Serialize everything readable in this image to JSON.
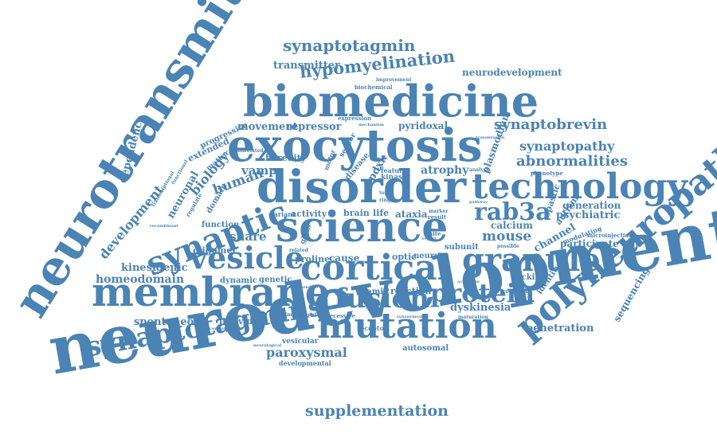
{
  "color": "#4a83b4",
  "words": {
    "neurodevelopmental": "neurodevelopmental",
    "neurotransmitter": "neurotransmitter",
    "biomedicine": "biomedicine",
    "exocytosis": "exocytosis",
    "disorder": "disorder",
    "science": "science",
    "membrane": "membrane",
    "mutation": "mutation",
    "polyneuropathy": "polyneuropathy",
    "technology": "technology",
    "cortical": "cortical",
    "granule": "granule",
    "synaptic": "synaptic",
    "vesicle": "vesicle",
    "synaptotagmins": "synaptotagmins",
    "fusion": "fusion",
    "protein": "protein",
    "rab3a": "rab3a",
    "synaptotagmin": "synaptotagmin",
    "hypomyelination": "hypomyelination",
    "transmitter": "transmitter",
    "neurodevelopment": "neurodevelopment",
    "synaptobrevin": "synaptobrevin",
    "synaptopathy": "synaptopathy",
    "abnormalities": "abnormalities",
    "movement": "movement",
    "repressor": "repressor",
    "pyridoxal": "pyridoxal",
    "development": "development",
    "dependence": "dependence",
    "kinesigenic": "kinesigenic",
    "homeodomain": "homeodomain",
    "spontaneous": "spontaneous",
    "individual": "individual",
    "paroxysmal": "paroxysmal",
    "supplementation": "supplementation",
    "penetration": "penetration",
    "dyskinesia": "dyskinesia",
    "mouse": "mouse",
    "calcium": "calcium",
    "psychiatric": "psychiatric",
    "generation": "generation",
    "participate": "participate",
    "sequencing": "sequencing",
    "oligomer": "oligomer",
    "snare": "snare",
    "vamp": "vamp",
    "human": "human",
    "biology": "biology",
    "extended": "extended",
    "progressive": "progressive",
    "neuronal": "neuronal",
    "function": "function",
    "domain": "domain",
    "heredity": "heredity",
    "atrophy": "atrophy",
    "pdxk": "pdxk",
    "activity": "activity",
    "brain": "brain",
    "life": "life",
    "ataxia": "ataxia",
    "cause": "cause",
    "proline": "proline",
    "optic": "optic",
    "neuron": "neuron",
    "subunit": "subunit",
    "dynamic": "dynamic",
    "genetic": "genetic",
    "vitamin": "vitamin",
    "reaction": "reaction",
    "docking": "docking",
    "autosomal": "autosomal",
    "vesicular": "vesicular",
    "developmental": "developmental",
    "receptor": "receptor",
    "recessive": "recessive",
    "plasmodium": "plasmodium",
    "channel": "channel",
    "spastic": "spastic",
    "autism": "autism",
    "identity": "identity",
    "phenotype": "phenotype",
    "improvement": "improvement",
    "biochemical": "biochemical",
    "expression": "expression",
    "sensor": "sensor",
    "motor": "motor",
    "disease": "disease",
    "feature": "feature",
    "kinase": "kinase",
    "marker": "marker",
    "result": "result",
    "white": "white",
    "matter": "matter",
    "unrelated": "unrelated",
    "variant": "variant",
    "glum": "glum",
    "related": "related",
    "analysis": "analysis",
    "modulating": "modulating",
    "microinjection": "microinjection",
    "possible": "possible",
    "complex": "complex",
    "maturation": "maturation",
    "synonymous": "synonymous",
    "neurological": "neurological",
    "dependent": "dependent",
    "combination": "combination",
    "recombinant": "recombinant",
    "transcriptional": "transcriptional",
    "functional": "functional",
    "regulate": "regulate",
    "transmission": "transmission",
    "topic": "topic",
    "cell": "cell",
    "pathway": "pathway",
    "ring": "ring",
    "report": "report",
    "impairment": "impairment",
    "mechanism": "mechanism",
    "activation": "activation"
  }
}
